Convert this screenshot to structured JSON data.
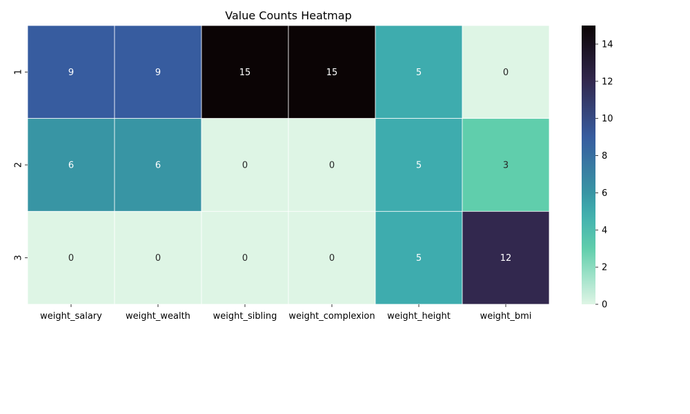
{
  "chart_data": {
    "type": "heatmap",
    "title": "Value Counts Heatmap",
    "xlabel": "",
    "ylabel": "",
    "x_categories": [
      "weight_salary",
      "weight_wealth",
      "weight_sibling",
      "weight_complexion",
      "weight_height",
      "weight_bmi"
    ],
    "y_categories": [
      "1",
      "2",
      "3"
    ],
    "values": [
      [
        9,
        9,
        15,
        15,
        5,
        0
      ],
      [
        6,
        6,
        0,
        0,
        5,
        3
      ],
      [
        0,
        0,
        0,
        0,
        5,
        12
      ]
    ],
    "value_range": [
      0,
      15
    ],
    "colorbar_ticks": [
      0,
      2,
      4,
      6,
      8,
      10,
      12,
      14
    ],
    "colormap": "mako_r",
    "annotations": true,
    "grid": false
  }
}
